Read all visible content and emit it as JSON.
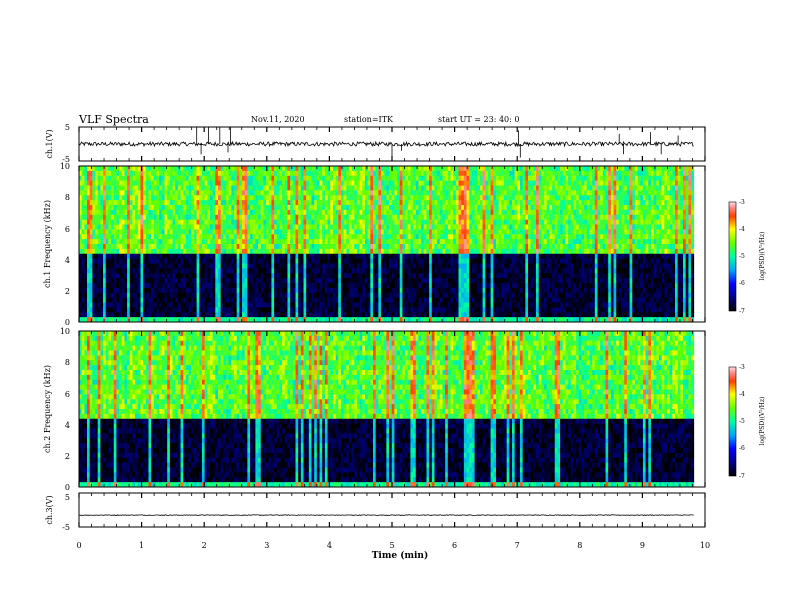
{
  "header": {
    "title": "VLF Spectra",
    "date": "Nov.11, 2020",
    "station": "station=ITK",
    "start": "start UT =  23: 40: 0"
  },
  "chart_data": [
    {
      "type": "line",
      "panel": "ch1-waveform",
      "ylabel": "ch.1(V)",
      "ylim": [
        -5,
        5
      ],
      "y_ticks": [
        "5",
        "-5"
      ],
      "xlim": [
        0,
        10
      ],
      "baseline": 0,
      "noise_amplitude": 0.6,
      "spikes": [
        {
          "x": 1.88,
          "y": 5.0
        },
        {
          "x": 2.07,
          "y": 5.0
        },
        {
          "x": 2.25,
          "y": 5.0
        },
        {
          "x": 2.42,
          "y": 5.0
        },
        {
          "x": 2.38,
          "y": -2.5
        },
        {
          "x": 1.95,
          "y": -3.0
        },
        {
          "x": 5.0,
          "y": -3.5
        },
        {
          "x": 5.15,
          "y": -2.0
        },
        {
          "x": 7.02,
          "y": 4.0
        },
        {
          "x": 7.05,
          "y": -4.0
        },
        {
          "x": 8.63,
          "y": 3.0
        },
        {
          "x": 8.7,
          "y": -3.0
        },
        {
          "x": 9.13,
          "y": 3.5
        },
        {
          "x": 9.3,
          "y": -3.0
        },
        {
          "x": 9.57,
          "y": 2.5
        }
      ]
    },
    {
      "type": "heatmap",
      "panel": "ch1-spectrogram",
      "ylabel": "ch.1 Frequency (kHz)",
      "ylim": [
        0,
        10
      ],
      "y_ticks": [
        "0",
        "2",
        "4",
        "6",
        "8",
        "10"
      ],
      "xlim": [
        0,
        9.82
      ],
      "colorbar": {
        "label": "log(PSD)(V²/Hz)",
        "range": [
          -7,
          -3
        ],
        "ticks": [
          "-3",
          "-4",
          "-5",
          "-6",
          "-7"
        ]
      },
      "description_values": {
        "low_band_kHz": [
          0,
          4.5
        ],
        "low_band_log_psd": -6.8,
        "high_band_kHz": [
          4.5,
          10
        ],
        "high_band_log_psd": -4.6
      }
    },
    {
      "type": "heatmap",
      "panel": "ch2-spectrogram",
      "ylabel": "ch.2 Frequency (kHz)",
      "ylim": [
        0,
        10
      ],
      "y_ticks": [
        "0",
        "2",
        "4",
        "6",
        "8",
        "10"
      ],
      "xlim": [
        0,
        9.82
      ],
      "colorbar": {
        "label": "log(PSD)(V²/Hz)",
        "range": [
          -7,
          -3
        ],
        "ticks": [
          "-3",
          "-4",
          "-5",
          "-6",
          "-7"
        ]
      },
      "description_values": {
        "low_band_kHz": [
          0,
          4.5
        ],
        "low_band_log_psd": -6.8,
        "high_band_kHz": [
          4.5,
          10
        ],
        "high_band_log_psd": -4.6
      }
    },
    {
      "type": "line",
      "panel": "ch3-waveform",
      "ylabel": "ch.3(V)",
      "ylim": [
        -5,
        5
      ],
      "y_ticks": [
        "5",
        "-5"
      ],
      "xlim": [
        0,
        10
      ],
      "baseline": -1.5,
      "noise_amplitude": 0.1,
      "spikes": []
    }
  ],
  "x_axis": {
    "label": "Time (min)",
    "ticks": [
      "0",
      "1",
      "2",
      "3",
      "4",
      "5",
      "6",
      "7",
      "8",
      "9",
      "10"
    ]
  }
}
